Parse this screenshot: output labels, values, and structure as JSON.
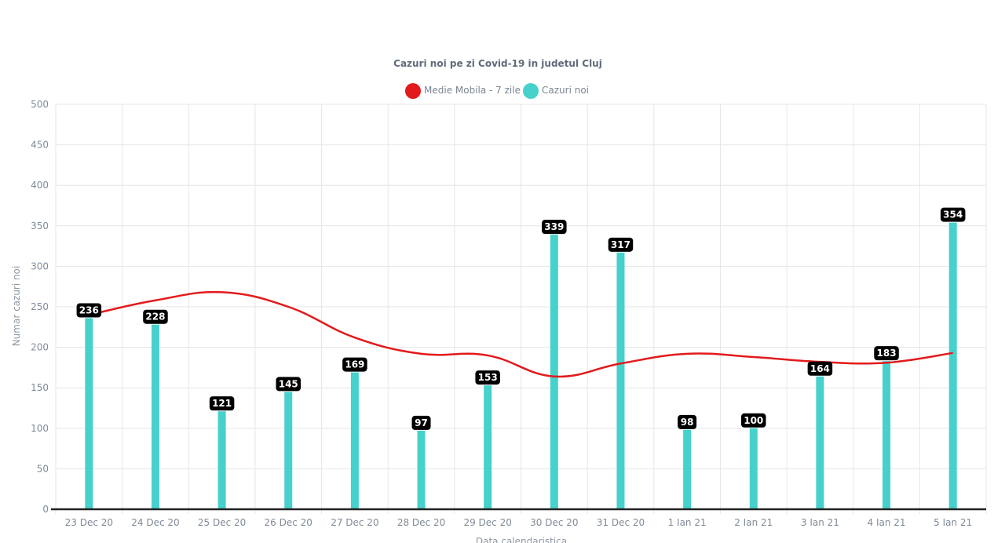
{
  "chart_data": {
    "type": "bar",
    "title": "Cazuri noi pe zi Covid-19 in judetul Cluj",
    "xlabel": "Data calendaristica",
    "ylabel": "Numar cazuri noi",
    "ylim": [
      0,
      500
    ],
    "yticks": [
      0,
      50,
      100,
      150,
      200,
      250,
      300,
      350,
      400,
      450,
      500
    ],
    "grid": true,
    "legend_position": "top-center",
    "categories": [
      "23 Dec 20",
      "24 Dec 20",
      "25 Dec 20",
      "26 Dec 20",
      "27 Dec 20",
      "28 Dec 20",
      "29 Dec 20",
      "30 Dec 20",
      "31 Dec 20",
      "1 Ian 21",
      "2 Ian 21",
      "3 Ian 21",
      "4 Ian 21",
      "5 Ian 21"
    ],
    "series": [
      {
        "name": "Medie Mobila - 7 zile",
        "kind": "line",
        "color": "#e31a1c",
        "values": [
          240,
          258,
          268,
          250,
          212,
          192,
          190,
          164,
          180,
          192,
          188,
          182,
          181,
          193
        ]
      },
      {
        "name": "Cazuri noi",
        "kind": "bar",
        "color": "#46d1cc",
        "values": [
          236,
          228,
          121,
          145,
          169,
          97,
          153,
          339,
          317,
          98,
          100,
          164,
          183,
          354
        ],
        "data_labels": [
          "236",
          "228",
          "121",
          "145",
          "169",
          "97",
          "153",
          "339",
          "317",
          "98",
          "100",
          "164",
          "183",
          "354"
        ]
      }
    ],
    "colors": {
      "grid": "#e6e6e6",
      "axis": "#222222",
      "label_bg": "#000000"
    }
  }
}
